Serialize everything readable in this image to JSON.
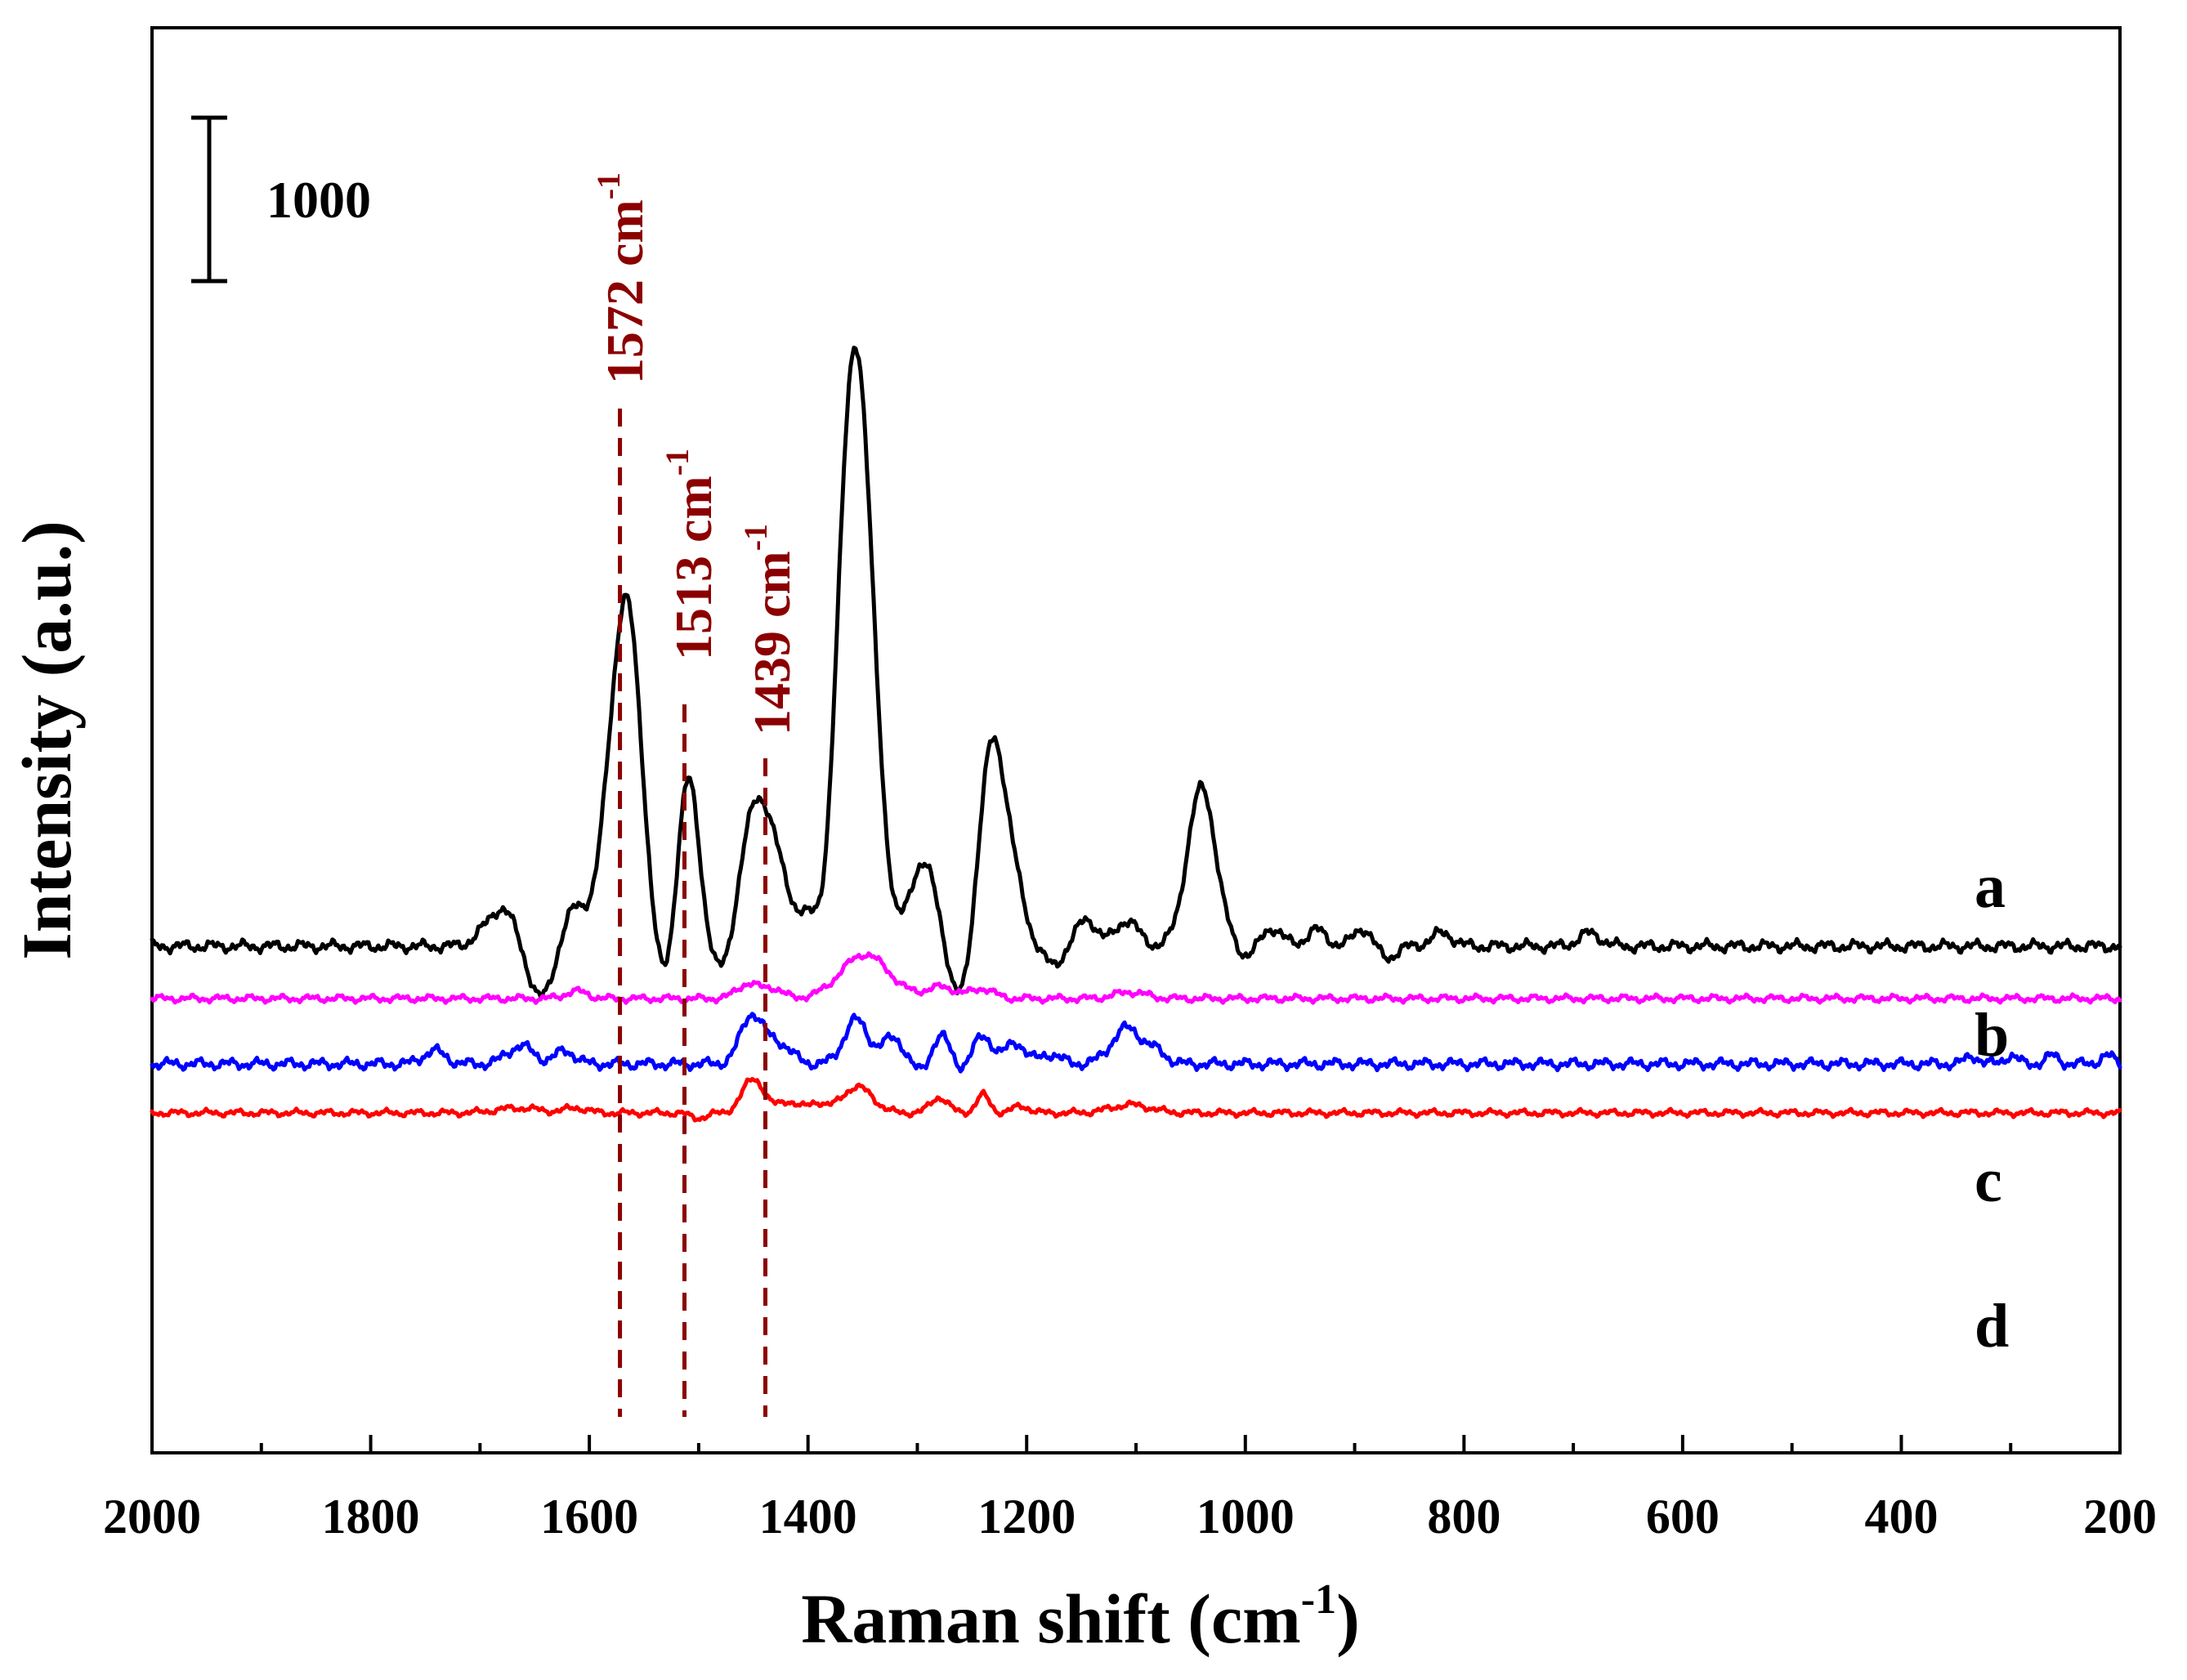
{
  "chart_data": {
    "type": "line",
    "xlabel": "Raman shift (cm",
    "xlabel_sup": "-1",
    "xlabel_end": ")",
    "ylabel": "Intensity (a.u.)",
    "xlim": [
      2000,
      200
    ],
    "x_reversed": true,
    "xticks": [
      2000,
      1800,
      1600,
      1400,
      1200,
      1000,
      800,
      600,
      400,
      200
    ],
    "scale_bar": {
      "value": 1000,
      "label": "1000"
    },
    "series": [
      {
        "name": "a",
        "color": "#000000",
        "baseline": 0,
        "noise_amp": 45,
        "peaks": [
          [
            1680,
            230,
            15
          ],
          [
            1615,
            200,
            11
          ],
          [
            1585,
            480,
            14
          ],
          [
            1565,
            1950,
            13
          ],
          [
            1510,
            1060,
            10
          ],
          [
            1455,
            420,
            12
          ],
          [
            1437,
            700,
            15
          ],
          [
            1400,
            150,
            10
          ],
          [
            1357,
            3700,
            16
          ],
          [
            1295,
            520,
            16
          ],
          [
            1232,
            1230,
            12
          ],
          [
            1212,
            320,
            10
          ],
          [
            1145,
            160,
            10
          ],
          [
            1108,
            160,
            10
          ],
          [
            1040,
            970,
            13
          ],
          [
            975,
            110,
            9
          ],
          [
            935,
            100,
            9
          ],
          [
            893,
            110,
            8
          ],
          [
            820,
            80,
            10
          ],
          [
            685,
            80,
            10
          ]
        ],
        "dips": [
          [
            1645,
            -330,
            12
          ],
          [
            1596,
            -120,
            8
          ],
          [
            1530,
            -300,
            10
          ],
          [
            1477,
            -200,
            10
          ],
          [
            1382,
            -360,
            10
          ],
          [
            1318,
            -160,
            10
          ],
          [
            1262,
            -400,
            12
          ],
          [
            1175,
            -120,
            8
          ],
          [
            1000,
            -60,
            8
          ],
          [
            870,
            -70,
            8
          ]
        ]
      },
      {
        "name": "b",
        "color": "#ff00ff",
        "baseline": -320,
        "noise_amp": 28,
        "peaks": [
          [
            1455,
            90,
            10
          ],
          [
            1432,
            60,
            9
          ],
          [
            1348,
            270,
            22
          ],
          [
            1278,
            70,
            14
          ],
          [
            1240,
            60,
            10
          ],
          [
            1105,
            40,
            14
          ],
          [
            1612,
            45,
            10
          ]
        ],
        "dips": []
      },
      {
        "name": "c",
        "color": "#0000ff",
        "baseline": -720,
        "noise_amp": 42,
        "peaks": [
          [
            1742,
            80,
            10
          ],
          [
            1663,
            110,
            12
          ],
          [
            1622,
            80,
            9
          ],
          [
            1452,
            290,
            10
          ],
          [
            1428,
            130,
            12
          ],
          [
            1356,
            270,
            11
          ],
          [
            1322,
            160,
            10
          ],
          [
            1278,
            180,
            9
          ],
          [
            1240,
            170,
            9
          ],
          [
            1210,
            130,
            9
          ],
          [
            1178,
            60,
            9
          ],
          [
            1108,
            220,
            14
          ],
          [
            1080,
            60,
            9
          ],
          [
            335,
            50,
            6
          ],
          [
            300,
            50,
            6
          ],
          [
            262,
            50,
            6
          ],
          [
            212,
            50,
            6
          ]
        ],
        "dips": [
          [
            1297,
            -60,
            8
          ],
          [
            1262,
            -50,
            8
          ]
        ]
      },
      {
        "name": "d",
        "color": "#ff0000",
        "baseline": -1020,
        "noise_amp": 26,
        "peaks": [
          [
            1450,
            210,
            10
          ],
          [
            1418,
            70,
            9
          ],
          [
            1392,
            60,
            8
          ],
          [
            1355,
            160,
            14
          ],
          [
            1280,
            95,
            8
          ],
          [
            1240,
            110,
            6
          ],
          [
            1205,
            40,
            8
          ],
          [
            1105,
            50,
            18
          ],
          [
            1665,
            30,
            20
          ],
          [
            1612,
            30,
            10
          ]
        ],
        "dips": [
          [
            1500,
            -30,
            8
          ]
        ]
      }
    ],
    "annotations": [
      {
        "label": "1572 cm",
        "sup": "-1",
        "x": 1572,
        "color": "#8b0000"
      },
      {
        "label": "1513 cm",
        "sup": "-1",
        "x": 1513,
        "color": "#8b0000"
      },
      {
        "label": "1439 cm",
        "sup": "-1",
        "x": 1439,
        "color": "#8b0000"
      }
    ]
  }
}
